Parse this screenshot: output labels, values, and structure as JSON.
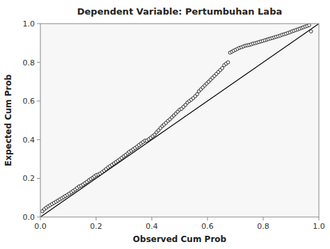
{
  "chart_data": {
    "type": "scatter",
    "title": "Dependent Variable: Pertumbuhan Laba",
    "xlabel": "Observed Cum Prob",
    "ylabel": "Expected Cum Prob",
    "xlim": [
      0.0,
      1.0
    ],
    "ylim": [
      0.0,
      1.0
    ],
    "xticks": [
      {
        "value": 0.0,
        "label": "0.0"
      },
      0.2,
      0.4,
      0.6,
      0.8,
      {
        "value": 1.0,
        "label": "1.0"
      }
    ],
    "yticks": [
      {
        "value": 0.0,
        "label": "0.0"
      },
      0.2,
      0.4,
      0.6,
      0.8,
      {
        "value": 1.0,
        "label": "1.0"
      }
    ],
    "grid": false,
    "series": [
      {
        "type": "scatter",
        "marker": "circle",
        "color": "#000000",
        "x": [
          0.007,
          0.014,
          0.021,
          0.028,
          0.035,
          0.042,
          0.049,
          0.056,
          0.063,
          0.07,
          0.077,
          0.084,
          0.09,
          0.097,
          0.104,
          0.111,
          0.118,
          0.125,
          0.132,
          0.139,
          0.146,
          0.153,
          0.16,
          0.167,
          0.174,
          0.181,
          0.188,
          0.194,
          0.201,
          0.208,
          0.215,
          0.222,
          0.229,
          0.236,
          0.243,
          0.25,
          0.257,
          0.264,
          0.271,
          0.278,
          0.285,
          0.292,
          0.299,
          0.306,
          0.313,
          0.319,
          0.326,
          0.333,
          0.34,
          0.347,
          0.354,
          0.361,
          0.368,
          0.375,
          0.382,
          0.389,
          0.396,
          0.403,
          0.41,
          0.417,
          0.424,
          0.431,
          0.438,
          0.444,
          0.451,
          0.458,
          0.465,
          0.472,
          0.479,
          0.486,
          0.493,
          0.5,
          0.507,
          0.514,
          0.521,
          0.528,
          0.535,
          0.542,
          0.549,
          0.556,
          0.563,
          0.569,
          0.576,
          0.583,
          0.59,
          0.597,
          0.604,
          0.611,
          0.618,
          0.625,
          0.632,
          0.639,
          0.646,
          0.653,
          0.66,
          0.667,
          0.674,
          0.681,
          0.688,
          0.694,
          0.701,
          0.708,
          0.715,
          0.722,
          0.729,
          0.736,
          0.743,
          0.75,
          0.757,
          0.764,
          0.771,
          0.778,
          0.785,
          0.792,
          0.799,
          0.806,
          0.813,
          0.819,
          0.826,
          0.833,
          0.84,
          0.847,
          0.854,
          0.861,
          0.868,
          0.875,
          0.882,
          0.889,
          0.896,
          0.903,
          0.91,
          0.917,
          0.924,
          0.931,
          0.938,
          0.944,
          0.951,
          0.958,
          0.965,
          0.972
        ],
        "values": [
          0.03,
          0.04,
          0.048,
          0.055,
          0.061,
          0.067,
          0.073,
          0.079,
          0.085,
          0.091,
          0.097,
          0.103,
          0.109,
          0.115,
          0.121,
          0.128,
          0.135,
          0.142,
          0.15,
          0.158,
          0.162,
          0.168,
          0.175,
          0.182,
          0.19,
          0.197,
          0.203,
          0.21,
          0.217,
          0.22,
          0.225,
          0.232,
          0.24,
          0.248,
          0.256,
          0.263,
          0.27,
          0.277,
          0.284,
          0.291,
          0.298,
          0.306,
          0.314,
          0.321,
          0.329,
          0.337,
          0.343,
          0.35,
          0.357,
          0.364,
          0.372,
          0.38,
          0.387,
          0.395,
          0.395,
          0.402,
          0.41,
          0.418,
          0.426,
          0.438,
          0.448,
          0.46,
          0.47,
          0.478,
          0.487,
          0.497,
          0.505,
          0.515,
          0.525,
          0.535,
          0.545,
          0.555,
          0.56,
          0.57,
          0.58,
          0.592,
          0.6,
          0.607,
          0.615,
          0.625,
          0.635,
          0.65,
          0.66,
          0.67,
          0.68,
          0.69,
          0.7,
          0.71,
          0.72,
          0.73,
          0.74,
          0.75,
          0.76,
          0.77,
          0.785,
          0.793,
          0.8,
          0.85,
          0.855,
          0.86,
          0.865,
          0.87,
          0.875,
          0.878,
          0.882,
          0.886,
          0.888,
          0.89,
          0.893,
          0.897,
          0.899,
          0.902,
          0.905,
          0.908,
          0.911,
          0.914,
          0.917,
          0.92,
          0.923,
          0.926,
          0.929,
          0.932,
          0.935,
          0.938,
          0.942,
          0.945,
          0.948,
          0.952,
          0.955,
          0.96,
          0.963,
          0.967,
          0.97,
          0.974,
          0.978,
          0.981,
          0.985,
          0.988,
          0.992,
          0.96
        ]
      },
      {
        "type": "line",
        "color": "#000000",
        "x": [
          0,
          1
        ],
        "values": [
          0,
          1
        ]
      }
    ]
  }
}
